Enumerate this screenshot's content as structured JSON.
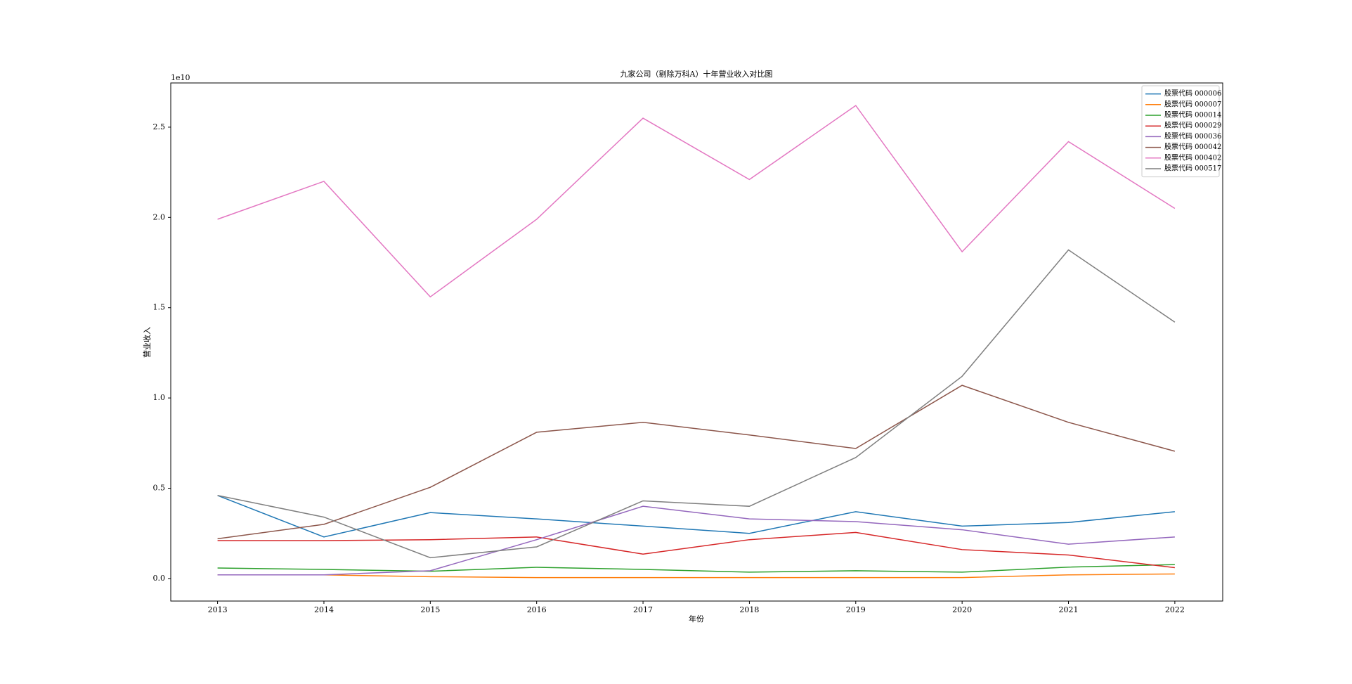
{
  "chart_data": {
    "type": "line",
    "title": "九家公司（剔除万科A）十年营业收入对比图",
    "xlabel": "年份",
    "ylabel": "营业收入",
    "y_offset_label": "1e10",
    "x": [
      2013,
      2014,
      2015,
      2016,
      2017,
      2018,
      2019,
      2020,
      2021,
      2022
    ],
    "xlim": [
      2012.56,
      2022.45
    ],
    "xticks": [
      2013,
      2014,
      2015,
      2016,
      2017,
      2018,
      2019,
      2020,
      2021,
      2022
    ],
    "ylim": [
      -0.125,
      2.745
    ],
    "yticks": [
      {
        "value": 0,
        "label": "0.0"
      },
      0.5,
      {
        "value": 1,
        "label": "1.0"
      },
      1.5,
      {
        "value": 2,
        "label": "2.0"
      },
      2.5
    ],
    "legend": "upper right",
    "series": [
      {
        "name": "股票代码 000006",
        "color": "#1f77b4",
        "values": [
          0.46,
          0.23,
          0.365,
          0.33,
          0.29,
          0.25,
          0.37,
          0.29,
          0.31,
          0.37
        ]
      },
      {
        "name": "股票代码 000007",
        "color": "#ff7f0e",
        "values": [
          0.02,
          0.02,
          0.01,
          0.005,
          0.005,
          0.005,
          0.005,
          0.005,
          0.02,
          0.025
        ]
      },
      {
        "name": "股票代码 000014",
        "color": "#2ca02c",
        "values": [
          0.058,
          0.05,
          0.04,
          0.062,
          0.05,
          0.035,
          0.043,
          0.035,
          0.063,
          0.077
        ]
      },
      {
        "name": "股票代码 000029",
        "color": "#d62728",
        "values": [
          0.21,
          0.21,
          0.215,
          0.23,
          0.135,
          0.215,
          0.255,
          0.16,
          0.13,
          0.06
        ]
      },
      {
        "name": "股票代码 000036",
        "color": "#9467bd",
        "values": [
          0.02,
          0.02,
          0.043,
          0.215,
          0.4,
          0.33,
          0.315,
          0.27,
          0.19,
          0.23
        ]
      },
      {
        "name": "股票代码 000042",
        "color": "#8c564b",
        "values": [
          0.22,
          0.3,
          0.505,
          0.81,
          0.865,
          0.795,
          0.72,
          1.07,
          0.865,
          0.705
        ]
      },
      {
        "name": "股票代码 000402",
        "color": "#e377c2",
        "values": [
          1.99,
          2.2,
          1.56,
          1.99,
          2.55,
          2.21,
          2.62,
          1.81,
          2.42,
          2.05
        ]
      },
      {
        "name": "股票代码 000517",
        "color": "#7f7f7f",
        "values": [
          0.46,
          0.34,
          0.115,
          0.175,
          0.43,
          0.4,
          0.67,
          1.12,
          1.82,
          1.42
        ]
      }
    ]
  }
}
